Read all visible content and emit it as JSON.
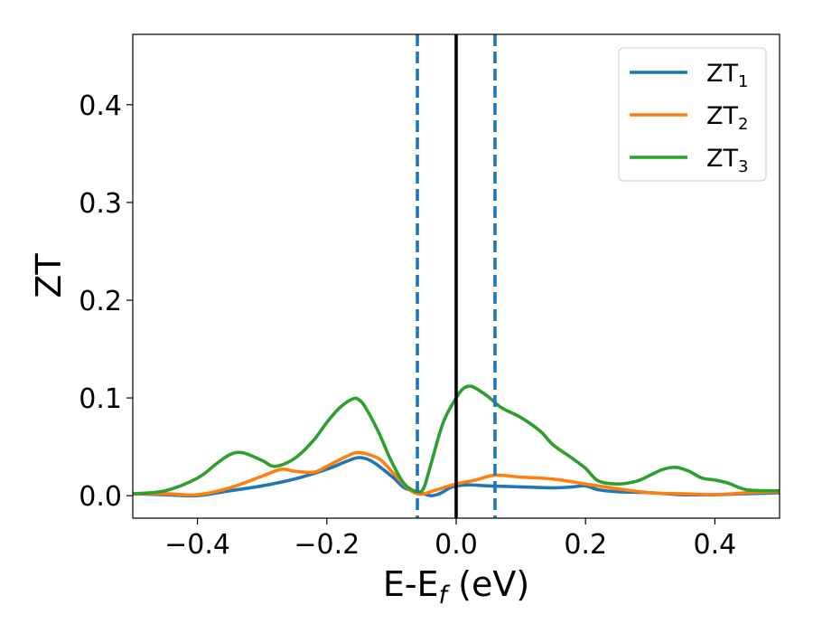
{
  "chart_data": {
    "type": "line",
    "xlabel": "E-E",
    "xlabel_sub": "f",
    "xlabel_unit": " (eV)",
    "ylabel": "ZT",
    "xlim": [
      -0.5,
      0.5
    ],
    "ylim": [
      -0.023,
      0.472
    ],
    "xticks": [
      -0.4,
      -0.2,
      0.0,
      0.2,
      0.4
    ],
    "xtick_labels": [
      "−0.4",
      "−0.2",
      "0.0",
      "0.2",
      "0.4"
    ],
    "yticks": [
      0.0,
      0.1,
      0.2,
      0.3,
      0.4
    ],
    "ytick_labels": [
      "0.0",
      "0.1",
      "0.2",
      "0.3",
      "0.4"
    ],
    "grid": false,
    "legend_position": "top-right",
    "vertical_lines": [
      {
        "x": -0.06,
        "style": "dashed",
        "color": "#1f77b4"
      },
      {
        "x": 0.0,
        "style": "solid",
        "color": "#000000"
      },
      {
        "x": 0.06,
        "style": "dashed",
        "color": "#1f77b4"
      }
    ],
    "series": [
      {
        "name": "ZT",
        "name_sub": "1",
        "color": "#1f77b4",
        "x": [
          -0.5,
          -0.45,
          -0.4,
          -0.35,
          -0.3,
          -0.25,
          -0.2,
          -0.17,
          -0.15,
          -0.13,
          -0.1,
          -0.08,
          -0.06,
          -0.05,
          -0.04,
          -0.03,
          -0.02,
          -0.01,
          0.0,
          0.02,
          0.05,
          0.1,
          0.15,
          0.18,
          0.2,
          0.22,
          0.25,
          0.3,
          0.35,
          0.4,
          0.45,
          0.5
        ],
        "y": [
          0.002,
          0.001,
          0.0,
          0.005,
          0.01,
          0.017,
          0.027,
          0.035,
          0.039,
          0.035,
          0.02,
          0.008,
          0.004,
          0.002,
          0.0,
          0.001,
          0.004,
          0.008,
          0.01,
          0.011,
          0.01,
          0.009,
          0.008,
          0.009,
          0.01,
          0.006,
          0.004,
          0.003,
          0.001,
          0.001,
          0.002,
          0.003
        ]
      },
      {
        "name": "ZT",
        "name_sub": "2",
        "color": "#ff7f0e",
        "x": [
          -0.5,
          -0.45,
          -0.4,
          -0.35,
          -0.3,
          -0.27,
          -0.25,
          -0.22,
          -0.2,
          -0.17,
          -0.15,
          -0.12,
          -0.1,
          -0.08,
          -0.07,
          -0.06,
          -0.05,
          -0.03,
          0.0,
          0.03,
          0.06,
          0.1,
          0.15,
          0.2,
          0.25,
          0.3,
          0.35,
          0.4,
          0.45,
          0.5
        ],
        "y": [
          0.002,
          0.002,
          0.001,
          0.008,
          0.02,
          0.027,
          0.025,
          0.024,
          0.03,
          0.04,
          0.044,
          0.038,
          0.025,
          0.011,
          0.005,
          0.002,
          0.002,
          0.006,
          0.012,
          0.016,
          0.021,
          0.019,
          0.017,
          0.012,
          0.007,
          0.003,
          0.002,
          0.001,
          0.003,
          0.004
        ]
      },
      {
        "name": "ZT",
        "name_sub": "3",
        "color": "#2ca02c",
        "x": [
          -0.5,
          -0.45,
          -0.4,
          -0.37,
          -0.35,
          -0.33,
          -0.3,
          -0.28,
          -0.25,
          -0.22,
          -0.2,
          -0.18,
          -0.16,
          -0.15,
          -0.14,
          -0.12,
          -0.1,
          -0.08,
          -0.06,
          -0.05,
          -0.04,
          -0.02,
          0.0,
          0.01,
          0.02,
          0.03,
          0.05,
          0.07,
          0.1,
          0.13,
          0.15,
          0.18,
          0.2,
          0.22,
          0.25,
          0.28,
          0.3,
          0.32,
          0.34,
          0.36,
          0.38,
          0.4,
          0.42,
          0.45,
          0.5
        ],
        "y": [
          0.002,
          0.005,
          0.018,
          0.033,
          0.042,
          0.044,
          0.036,
          0.03,
          0.038,
          0.057,
          0.075,
          0.09,
          0.099,
          0.098,
          0.09,
          0.065,
          0.035,
          0.012,
          0.004,
          0.008,
          0.03,
          0.075,
          0.1,
          0.109,
          0.112,
          0.11,
          0.101,
          0.09,
          0.08,
          0.066,
          0.052,
          0.038,
          0.028,
          0.015,
          0.012,
          0.015,
          0.021,
          0.027,
          0.029,
          0.025,
          0.018,
          0.016,
          0.013,
          0.006,
          0.005
        ]
      }
    ]
  }
}
